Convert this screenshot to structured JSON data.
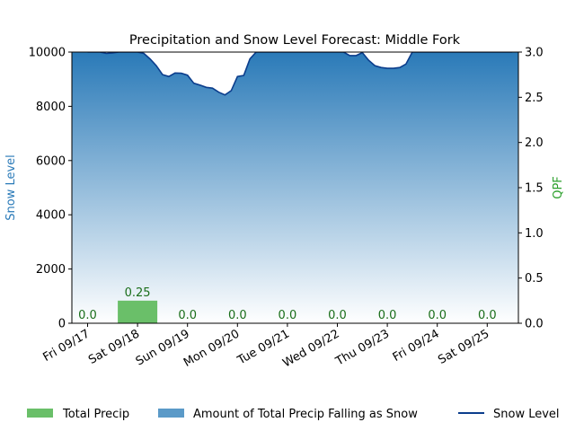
{
  "chart_data": {
    "type": "bar",
    "title": "Precipitation and Snow Level Forecast: Middle Fork",
    "ylabel_left": "Snow Level",
    "ylabel_right": "QPF",
    "ylim_left": [
      0,
      10000
    ],
    "ylim_right": [
      0,
      3.0
    ],
    "yticks_left": [
      "0",
      "2000",
      "4000",
      "6000",
      "8000",
      "10000"
    ],
    "yticks_right": [
      "0.0",
      "0.5",
      "1.0",
      "1.5",
      "2.0",
      "2.5",
      "3.0"
    ],
    "categories": [
      "Fri 09/17",
      "Sat 09/18",
      "Sun 09/19",
      "Mon 09/20",
      "Tue 09/21",
      "Wed 09/22",
      "Thu 09/23",
      "Fri 09/24",
      "Sat 09/25"
    ],
    "qpf_values": [
      0.0,
      0.25,
      0.0,
      0.0,
      0.0,
      0.0,
      0.0,
      0.0,
      0.0
    ],
    "qpf_labels": [
      "0.0",
      "0.25",
      "0.0",
      "0.0",
      "0.0",
      "0.0",
      "0.0",
      "0.0",
      "0.0"
    ],
    "snow_level": {
      "x_days": [
        0,
        0.125,
        0.25,
        0.375,
        0.5,
        0.625,
        0.75,
        0.875,
        1.0,
        1.125,
        1.25,
        1.375,
        1.5,
        1.625,
        1.75,
        1.875,
        2.0,
        2.125,
        2.25,
        2.375,
        2.5,
        2.625,
        2.75,
        2.875,
        3.0,
        3.125,
        3.25,
        3.375,
        3.5,
        3.625,
        3.75,
        3.875,
        4.0,
        4.25,
        4.5,
        4.75,
        5.0,
        5.125,
        5.25,
        5.375,
        5.5,
        5.625,
        5.75,
        5.875,
        6.0,
        6.125,
        6.25,
        6.375,
        6.5,
        6.75,
        7.0,
        7.5,
        8.0,
        8.5
      ],
      "values": [
        10000,
        10000,
        10000,
        9950,
        9970,
        10000,
        10000,
        10000,
        10000,
        9950,
        9750,
        9500,
        9170,
        9100,
        9230,
        9220,
        9150,
        8850,
        8780,
        8700,
        8670,
        8520,
        8420,
        8580,
        9100,
        9140,
        9750,
        10000,
        10000,
        10000,
        10000,
        10000,
        10000,
        10000,
        10000,
        10000,
        10000,
        10000,
        9870,
        9870,
        9980,
        9700,
        9500,
        9430,
        9400,
        9400,
        9430,
        9560,
        10000,
        10000,
        10000,
        10000,
        10000,
        10000
      ]
    },
    "legend": [
      "Total Precip",
      "Amount of Total Precip Falling as Snow",
      "Snow Level"
    ],
    "legend_placement": "bottom",
    "colors": {
      "total_precip": "#6abf69",
      "snow_fill_top": "#2a7ab8",
      "snow_fill_bottom": "#ffffff",
      "snow_legend": "#5b9ac8",
      "snow_level_line": "#0b3d8c",
      "left_axis_label": "#2a7ab8",
      "right_axis_label": "#2ca02c",
      "bar_label": "#1a6e1a"
    }
  }
}
